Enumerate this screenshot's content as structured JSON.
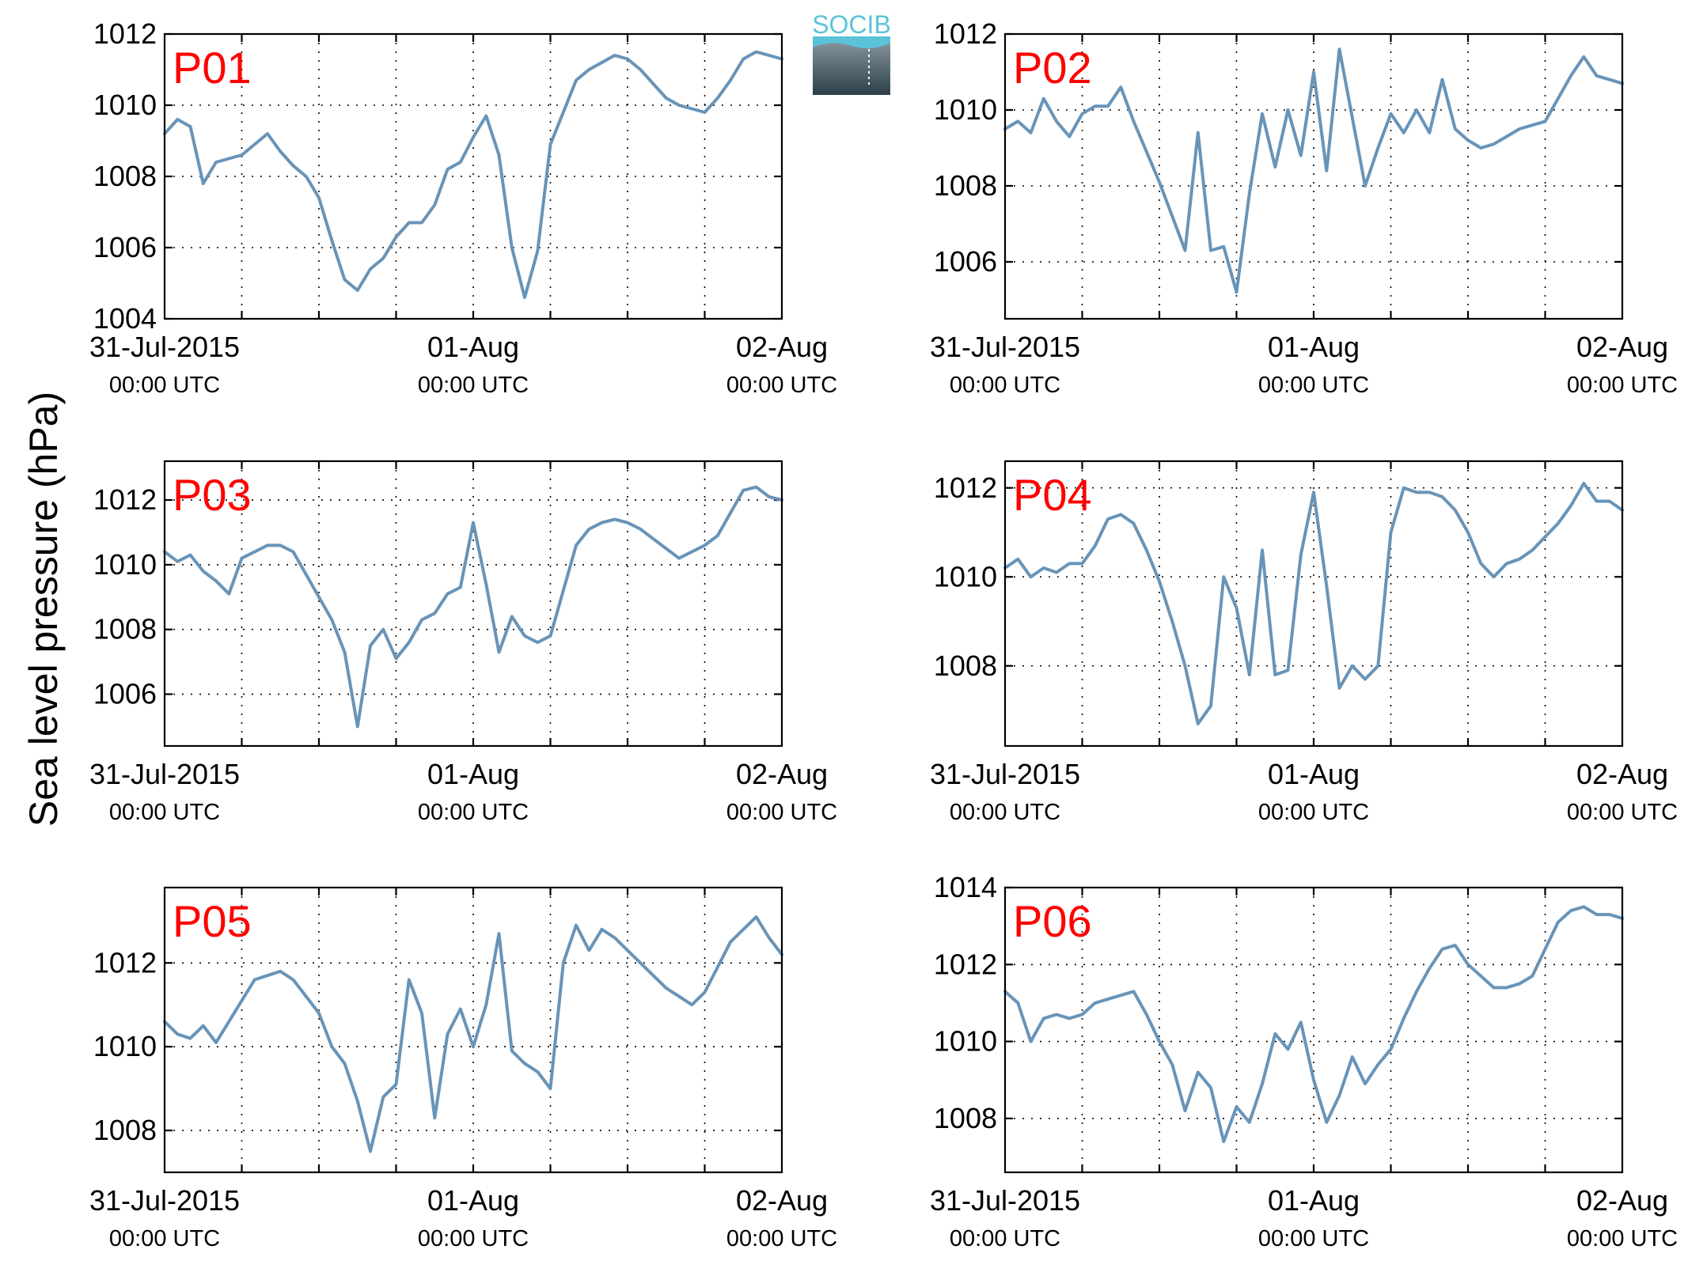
{
  "figure": {
    "ylabel": "Sea level pressure (hPa)",
    "line_color": "#6894B8",
    "label_color": "#FF0000",
    "x_tick_labels": [
      {
        "line1": "31-Jul-2015",
        "line2": "00:00 UTC"
      },
      {
        "line1": "01-Aug",
        "line2": "00:00 UTC"
      },
      {
        "line1": "02-Aug",
        "line2": "00:00 UTC"
      }
    ]
  },
  "logo": {
    "text": "SOCIB",
    "text_color": "#5BC3D8",
    "gradient_top": "#8D9CA5",
    "gradient_bottom": "#2C3F49"
  },
  "chart_data": [
    {
      "type": "line",
      "name": "P01",
      "xlim": [
        "2015-07-31T00:00",
        "2015-08-02T00:00"
      ],
      "ylim": [
        1004,
        1012
      ],
      "yticks": [
        1004,
        1006,
        1008,
        1010,
        1012
      ],
      "x_hours": [
        0,
        1,
        2,
        3,
        4,
        5,
        6,
        7,
        8,
        9,
        10,
        11,
        12,
        13,
        14,
        15,
        16,
        17,
        18,
        19,
        20,
        21,
        22,
        23,
        24,
        25,
        26,
        27,
        28,
        29,
        30,
        31,
        32,
        33,
        34,
        35,
        36,
        37,
        38,
        39,
        40,
        41,
        42,
        43,
        44,
        45,
        46,
        47,
        48
      ],
      "values": [
        1009.2,
        1009.6,
        1009.4,
        1007.8,
        1008.4,
        1008.5,
        1008.6,
        1008.9,
        1009.2,
        1008.7,
        1008.3,
        1008.0,
        1007.4,
        1006.2,
        1005.1,
        1004.8,
        1005.4,
        1005.7,
        1006.3,
        1006.7,
        1006.7,
        1007.2,
        1008.2,
        1008.4,
        1009.1,
        1009.7,
        1008.6,
        1006.0,
        1004.6,
        1005.9,
        1008.9,
        1009.8,
        1010.7,
        1011.0,
        1011.2,
        1011.4,
        1011.3,
        1011.0,
        1010.6,
        1010.2,
        1010.0,
        1009.9,
        1009.8,
        1010.2,
        1010.7,
        1011.3,
        1011.5,
        1011.4,
        1011.3
      ]
    },
    {
      "type": "line",
      "name": "P02",
      "xlim": [
        "2015-07-31T00:00",
        "2015-08-02T00:00"
      ],
      "ylim": [
        1004.5,
        1012
      ],
      "yticks": [
        1006,
        1008,
        1010,
        1012
      ],
      "x_hours": [
        0,
        1,
        2,
        3,
        4,
        5,
        6,
        7,
        8,
        9,
        10,
        11,
        12,
        13,
        14,
        15,
        16,
        17,
        18,
        19,
        20,
        21,
        22,
        23,
        24,
        25,
        26,
        27,
        28,
        29,
        30,
        31,
        32,
        33,
        34,
        35,
        36,
        37,
        38,
        39,
        40,
        41,
        42,
        43,
        44,
        45,
        46,
        47,
        48
      ],
      "values": [
        1009.5,
        1009.7,
        1009.4,
        1010.3,
        1009.7,
        1009.3,
        1009.9,
        1010.1,
        1010.1,
        1010.6,
        1009.7,
        1008.9,
        1008.1,
        1007.2,
        1006.3,
        1009.4,
        1006.3,
        1006.4,
        1005.2,
        1007.8,
        1009.9,
        1008.5,
        1010.0,
        1008.8,
        1011.0,
        1008.4,
        1011.6,
        1009.8,
        1008.0,
        1009.0,
        1009.9,
        1009.4,
        1010.0,
        1009.4,
        1010.8,
        1009.5,
        1009.2,
        1009.0,
        1009.1,
        1009.3,
        1009.5,
        1009.6,
        1009.7,
        1010.3,
        1010.9,
        1011.4,
        1010.9,
        1010.8,
        1010.7
      ]
    },
    {
      "type": "line",
      "name": "P03",
      "xlim": [
        "2015-07-31T00:00",
        "2015-08-02T00:00"
      ],
      "ylim": [
        1004.4,
        1013.2
      ],
      "yticks": [
        1006,
        1008,
        1010,
        1012
      ],
      "x_hours": [
        0,
        1,
        2,
        3,
        4,
        5,
        6,
        7,
        8,
        9,
        10,
        11,
        12,
        13,
        14,
        15,
        16,
        17,
        18,
        19,
        20,
        21,
        22,
        23,
        24,
        25,
        26,
        27,
        28,
        29,
        30,
        31,
        32,
        33,
        34,
        35,
        36,
        37,
        38,
        39,
        40,
        41,
        42,
        43,
        44,
        45,
        46,
        47,
        48
      ],
      "values": [
        1010.4,
        1010.1,
        1010.3,
        1009.8,
        1009.5,
        1009.1,
        1010.2,
        1010.4,
        1010.6,
        1010.6,
        1010.4,
        1009.7,
        1009.0,
        1008.3,
        1007.3,
        1005.0,
        1007.5,
        1008.0,
        1007.1,
        1007.6,
        1008.3,
        1008.5,
        1009.1,
        1009.3,
        1011.3,
        1009.4,
        1007.3,
        1008.4,
        1007.8,
        1007.6,
        1007.8,
        1009.2,
        1010.6,
        1011.1,
        1011.3,
        1011.4,
        1011.3,
        1011.1,
        1010.8,
        1010.5,
        1010.2,
        1010.4,
        1010.6,
        1010.9,
        1011.6,
        1012.3,
        1012.4,
        1012.1,
        1012.0
      ]
    },
    {
      "type": "line",
      "name": "P04",
      "xlim": [
        "2015-07-31T00:00",
        "2015-08-02T00:00"
      ],
      "ylim": [
        1006.2,
        1012.6
      ],
      "yticks": [
        1008,
        1010,
        1012
      ],
      "x_hours": [
        0,
        1,
        2,
        3,
        4,
        5,
        6,
        7,
        8,
        9,
        10,
        11,
        12,
        13,
        14,
        15,
        16,
        17,
        18,
        19,
        20,
        21,
        22,
        23,
        24,
        25,
        26,
        27,
        28,
        29,
        30,
        31,
        32,
        33,
        34,
        35,
        36,
        37,
        38,
        39,
        40,
        41,
        42,
        43,
        44,
        45,
        46,
        47,
        48
      ],
      "values": [
        1010.2,
        1010.4,
        1010.0,
        1010.2,
        1010.1,
        1010.3,
        1010.3,
        1010.7,
        1011.3,
        1011.4,
        1011.2,
        1010.6,
        1009.9,
        1009.0,
        1008.0,
        1006.7,
        1007.1,
        1010.0,
        1009.3,
        1007.8,
        1010.6,
        1007.8,
        1007.9,
        1010.5,
        1011.9,
        1009.8,
        1007.5,
        1008.0,
        1007.7,
        1008.0,
        1011.0,
        1012.0,
        1011.9,
        1011.9,
        1011.8,
        1011.5,
        1011.0,
        1010.3,
        1010.0,
        1010.3,
        1010.4,
        1010.6,
        1010.9,
        1011.2,
        1011.6,
        1012.1,
        1011.7,
        1011.7,
        1011.5
      ]
    },
    {
      "type": "line",
      "name": "P05",
      "xlim": [
        "2015-07-31T00:00",
        "2015-08-02T00:00"
      ],
      "ylim": [
        1007,
        1013.8
      ],
      "yticks": [
        1008,
        1010,
        1012
      ],
      "x_hours": [
        0,
        1,
        2,
        3,
        4,
        5,
        6,
        7,
        8,
        9,
        10,
        11,
        12,
        13,
        14,
        15,
        16,
        17,
        18,
        19,
        20,
        21,
        22,
        23,
        24,
        25,
        26,
        27,
        28,
        29,
        30,
        31,
        32,
        33,
        34,
        35,
        36,
        37,
        38,
        39,
        40,
        41,
        42,
        43,
        44,
        45,
        46,
        47,
        48
      ],
      "values": [
        1010.6,
        1010.3,
        1010.2,
        1010.5,
        1010.1,
        1010.6,
        1011.1,
        1011.6,
        1011.7,
        1011.8,
        1011.6,
        1011.2,
        1010.8,
        1010.0,
        1009.6,
        1008.7,
        1007.5,
        1008.8,
        1009.1,
        1011.6,
        1010.8,
        1008.3,
        1010.3,
        1010.9,
        1010.0,
        1011.0,
        1012.7,
        1009.9,
        1009.6,
        1009.4,
        1009.0,
        1012.0,
        1012.9,
        1012.3,
        1012.8,
        1012.6,
        1012.3,
        1012.0,
        1011.7,
        1011.4,
        1011.2,
        1011.0,
        1011.3,
        1011.9,
        1012.5,
        1012.8,
        1013.1,
        1012.6,
        1012.2
      ]
    },
    {
      "type": "line",
      "name": "P06",
      "xlim": [
        "2015-07-31T00:00",
        "2015-08-02T00:00"
      ],
      "ylim": [
        1006.6,
        1014
      ],
      "yticks": [
        1008,
        1010,
        1012,
        1014
      ],
      "x_hours": [
        0,
        1,
        2,
        3,
        4,
        5,
        6,
        7,
        8,
        9,
        10,
        11,
        12,
        13,
        14,
        15,
        16,
        17,
        18,
        19,
        20,
        21,
        22,
        23,
        24,
        25,
        26,
        27,
        28,
        29,
        30,
        31,
        32,
        33,
        34,
        35,
        36,
        37,
        38,
        39,
        40,
        41,
        42,
        43,
        44,
        45,
        46,
        47,
        48
      ],
      "values": [
        1011.3,
        1011.0,
        1010.0,
        1010.6,
        1010.7,
        1010.6,
        1010.7,
        1011.0,
        1011.1,
        1011.2,
        1011.3,
        1010.7,
        1010.0,
        1009.4,
        1008.2,
        1009.2,
        1008.8,
        1007.4,
        1008.3,
        1007.9,
        1008.9,
        1010.2,
        1009.8,
        1010.5,
        1009.0,
        1007.9,
        1008.6,
        1009.6,
        1008.9,
        1009.4,
        1009.8,
        1010.6,
        1011.3,
        1011.9,
        1012.4,
        1012.5,
        1012.0,
        1011.7,
        1011.4,
        1011.4,
        1011.5,
        1011.7,
        1012.4,
        1013.1,
        1013.4,
        1013.5,
        1013.3,
        1013.3,
        1013.2
      ]
    }
  ]
}
